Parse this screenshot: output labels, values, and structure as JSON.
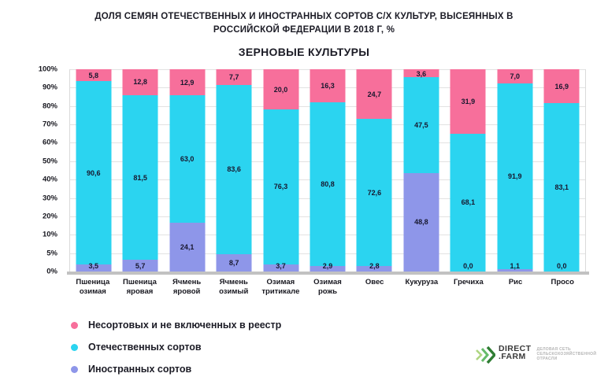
{
  "header": {
    "title_lines": [
      "ДОЛЯ СЕМЯН ОТЕЧЕСТВЕННЫХ И ИНОСТРАННЫХ СОРТОВ С/Х КУЛЬТУР, ВЫСЕЯННЫХ В",
      "РОССИЙСКОЙ ФЕДЕРАЦИИ В 2018 Г, %"
    ],
    "subtitle": "ЗЕРНОВЫЕ КУЛЬТУРЫ"
  },
  "chart_data": {
    "type": "bar",
    "stacked": true,
    "stack_order": "bottom-to-top",
    "title": "ЗЕРНОВЫЕ КУЛЬТУРЫ",
    "categories": [
      "Пшеница озимая",
      "Пшеница яровая",
      "Ячмень яровой",
      "Ячмень озимый",
      "Озимая тритикале",
      "Озимая рожь",
      "Овес",
      "Кукуруза",
      "Гречиха",
      "Рис",
      "Просо"
    ],
    "series": [
      {
        "name": "Иностранных сортов",
        "color": "#8e96e9",
        "values": [
          3.5,
          5.7,
          24.1,
          8.7,
          3.7,
          2.9,
          2.8,
          48.8,
          0.0,
          1.1,
          0.0
        ]
      },
      {
        "name": "Отечественных сортов",
        "color": "#2bd4f0",
        "values": [
          90.6,
          81.5,
          63.0,
          83.6,
          76.3,
          80.8,
          72.6,
          47.5,
          68.1,
          91.9,
          83.1
        ]
      },
      {
        "name": "Несортовых и не включенных в реестр",
        "color": "#f76f9b",
        "values": [
          5.8,
          12.8,
          12.9,
          7.7,
          20.0,
          16.3,
          24.7,
          3.6,
          31.9,
          7.0,
          16.9
        ]
      }
    ],
    "value_labels": true,
    "decimal_separator": ",",
    "ylim": [
      0,
      100
    ],
    "y_tick_labels": [
      "100%",
      "90%",
      "80%",
      "70%",
      "60%",
      "50%",
      "40%",
      "30%",
      "20%",
      "10%",
      "5%",
      "0%"
    ],
    "grid": true,
    "legend_position": "bottom-left"
  },
  "legend": {
    "items": [
      {
        "label": "Несортовых и не включенных в реестр",
        "color": "#f76f9b"
      },
      {
        "label": "Отечественных сортов",
        "color": "#2bd4f0"
      },
      {
        "label": "Иностранных сортов",
        "color": "#8e96e9"
      }
    ]
  },
  "logo": {
    "brand_line1": "DIRECT",
    "brand_line2": ".FARM",
    "tagline": "ДЕЛОВАЯ СЕТЬ СЕЛЬСКОХОЗЯЙСТВЕННОЙ ОТРАСЛИ"
  }
}
